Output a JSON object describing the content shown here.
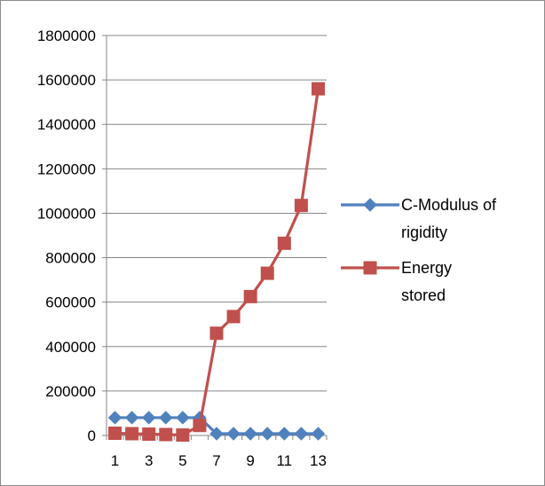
{
  "chart_data": {
    "type": "line",
    "title": "",
    "xlabel": "",
    "ylabel": "",
    "x": [
      1,
      2,
      3,
      4,
      5,
      6,
      7,
      8,
      9,
      10,
      11,
      12,
      13
    ],
    "x_tick_labels": [
      "1",
      "3",
      "5",
      "7",
      "9",
      "11",
      "13"
    ],
    "ylim": [
      0,
      1800000
    ],
    "y_tick_labels": [
      "0",
      "200000",
      "400000",
      "600000",
      "800000",
      "1000000",
      "1200000",
      "1400000",
      "1600000",
      "1800000"
    ],
    "grid": "horizontal",
    "legend_position": "right",
    "series": [
      {
        "name": "C-Modulus of rigidity",
        "legend_lines": [
          "C-Modulus of",
          "rigidity"
        ],
        "marker": "diamond",
        "color": "#4F81BD",
        "values": [
          80000,
          80000,
          80000,
          80000,
          80000,
          80000,
          8000,
          8000,
          8000,
          8000,
          8000,
          8000,
          8000
        ]
      },
      {
        "name": "Energy stored",
        "legend_lines": [
          "Energy",
          "stored"
        ],
        "marker": "square",
        "color": "#C0504D",
        "values": [
          10000,
          8000,
          6000,
          4000,
          2000,
          45000,
          460000,
          535000,
          625000,
          730000,
          865000,
          1035000,
          1560000
        ]
      }
    ]
  }
}
